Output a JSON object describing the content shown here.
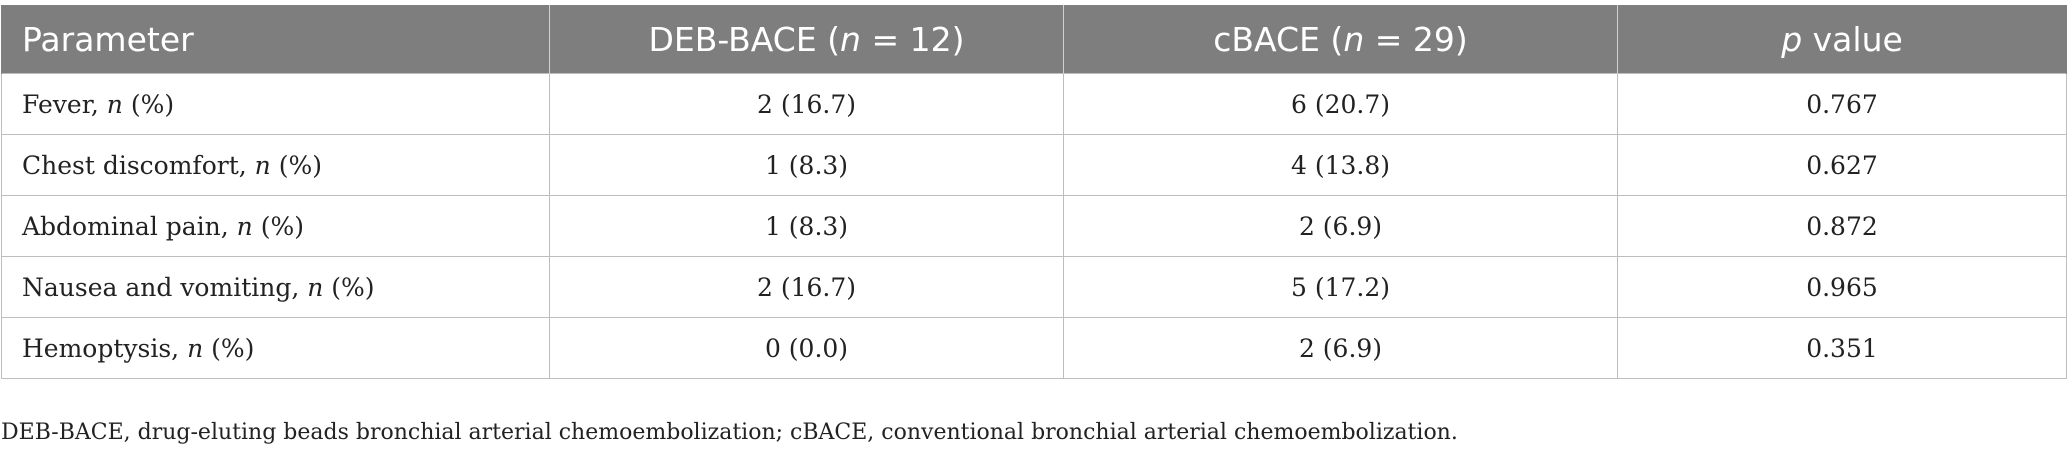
{
  "table": {
    "header": {
      "parameter": "Parameter",
      "deb_label": "DEB-BACE (",
      "deb_n": "n",
      "deb_count": " = 12)",
      "cbace_label": "cBACE (",
      "cbace_n": "n",
      "cbace_count": " = 29)",
      "p_letter": "p",
      "p_rest": " value"
    },
    "rows": [
      {
        "name": "Fever, ",
        "n": "n",
        "pct": " (%)",
        "deb": "2 (16.7)",
        "cbace": "6 (20.7)",
        "p": "0.767"
      },
      {
        "name": "Chest discomfort, ",
        "n": "n",
        "pct": " (%)",
        "deb": "1 (8.3)",
        "cbace": "4 (13.8)",
        "p": "0.627"
      },
      {
        "name": "Abdominal pain, ",
        "n": "n",
        "pct": " (%)",
        "deb": "1 (8.3)",
        "cbace": "2 (6.9)",
        "p": "0.872"
      },
      {
        "name": "Nausea and vomiting, ",
        "n": "n",
        "pct": " (%)",
        "deb": "2 (16.7)",
        "cbace": "5 (17.2)",
        "p": "0.965"
      },
      {
        "name": "Hemoptysis, ",
        "n": "n",
        "pct": " (%)",
        "deb": "0 (0.0)",
        "cbace": "2 (6.9)",
        "p": "0.351"
      }
    ]
  },
  "footnote": "DEB-BACE, drug-eluting beads bronchial arterial chemoembolization; cBACE, conventional bronchial arterial chemoembolization.",
  "colors": {
    "header_bg": "#7d7e7d",
    "header_text": "#ffffff",
    "border": "#bdbdbd",
    "body_text": "#222222"
  }
}
